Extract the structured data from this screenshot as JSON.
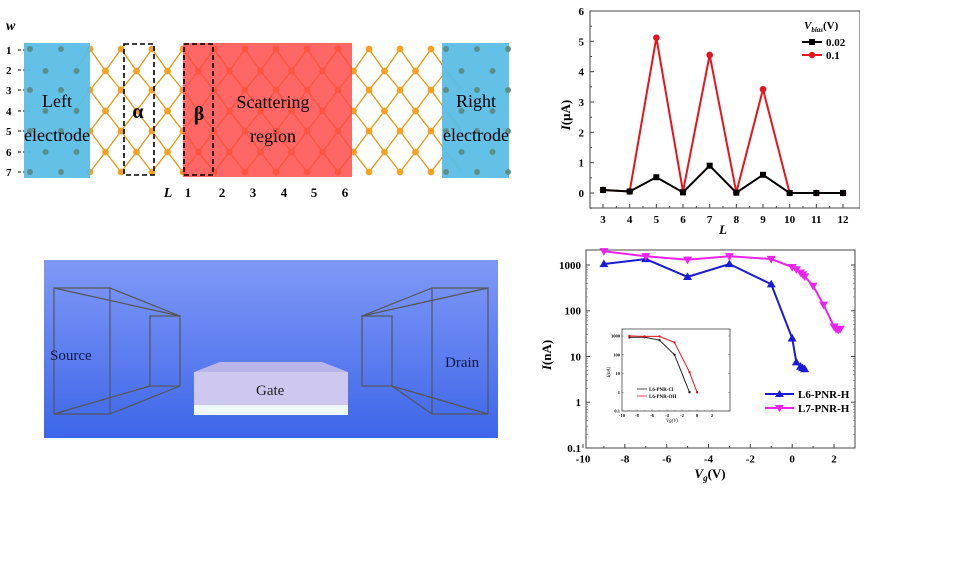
{
  "panel_a": {
    "w_label": "w",
    "row_labels": [
      "1",
      "2",
      "3",
      "4",
      "5",
      "6",
      "7"
    ],
    "left_electrode": [
      "Left",
      "electrode"
    ],
    "right_electrode": [
      "Right",
      "electrode"
    ],
    "alpha": "α",
    "beta": "β",
    "scattering": [
      "Scattering",
      "region"
    ],
    "L_label": "L",
    "col_labels": [
      "1",
      "2",
      "3",
      "4",
      "5",
      "6"
    ],
    "colors": {
      "electrode": "#5bbde6",
      "scattering": "#ff5a5a",
      "atom": "#f5a020",
      "electrode_atom": "#5d8f88"
    }
  },
  "panel_c": {
    "source": "Source",
    "drain": "Drain",
    "gate": "Gate",
    "colors": {
      "bg_top": "#7f99f5",
      "bg_bottom": "#3a63e8"
    }
  },
  "chart_data": [
    {
      "type": "line",
      "title": "",
      "xlabel": "L",
      "ylabel": "I(μA)",
      "x": [
        3,
        4,
        5,
        6,
        7,
        8,
        9,
        10,
        11,
        12
      ],
      "xlim": [
        2.6,
        12.4
      ],
      "ylim": [
        -0.5,
        6
      ],
      "xticks": [
        "3",
        "4",
        "5",
        "6",
        "7",
        "8",
        "9",
        "10",
        "11",
        "12"
      ],
      "yticks": [
        "0",
        "1",
        "2",
        "3",
        "4",
        "5",
        "6"
      ],
      "legend_title": "V_bias(V)",
      "legend_position": "top-right",
      "series": [
        {
          "name": "0.02",
          "color": "#000000",
          "marker": "square",
          "x": [
            3,
            4,
            5,
            6,
            7,
            8,
            9,
            10,
            11,
            12
          ],
          "values": [
            0.1,
            0.05,
            0.52,
            0.02,
            0.9,
            0.01,
            0.6,
            0.0,
            0.0,
            0.0
          ]
        },
        {
          "name": "0.1",
          "color": "#e8141c",
          "marker": "circle",
          "x": [
            3,
            4,
            5,
            6,
            7,
            8,
            9,
            10,
            11,
            12
          ],
          "values": [
            0.1,
            0.05,
            5.12,
            0.05,
            4.55,
            0.02,
            3.42,
            0.0,
            0.0,
            0.0
          ]
        }
      ]
    },
    {
      "type": "line",
      "title": "",
      "xlabel": "Vg(V)",
      "ylabel": "I(nA)",
      "yscale": "log",
      "xlim": [
        -10,
        3
      ],
      "ylim": [
        0.1,
        2500
      ],
      "xticks": [
        "-10",
        "-8",
        "-6",
        "-4",
        "-2",
        "0",
        "2"
      ],
      "yticks": [
        "0.1",
        "1",
        "10",
        "100",
        "1000"
      ],
      "legend_position": "bottom-right",
      "series": [
        {
          "name": "L6-PNR-H",
          "color": "#1a1ad8",
          "marker": "triangle-up",
          "x": [
            -9,
            -7,
            -5,
            -3,
            -1,
            0,
            0.2,
            0.4,
            0.5,
            0.6
          ],
          "values": [
            1050,
            1350,
            550,
            1050,
            380,
            25,
            7.5,
            6,
            5.6,
            5.3
          ]
        },
        {
          "name": "L7-PNR-H",
          "color": "#ee22ee",
          "marker": "triangle-down",
          "x": [
            -9,
            -7,
            -5,
            -3,
            -1,
            0,
            0.2,
            0.4,
            0.5,
            0.6,
            1,
            1.5,
            2,
            2.1,
            2.2,
            2.3
          ],
          "values": [
            2000,
            1550,
            1300,
            1550,
            1350,
            900,
            800,
            680,
            620,
            560,
            350,
            135,
            45,
            40,
            38,
            40
          ]
        }
      ]
    },
    {
      "type": "line",
      "title": "",
      "inset": true,
      "xlabel": "Vg(V)",
      "ylabel": "I(nA)",
      "yscale": "log",
      "xlim": [
        -10,
        3
      ],
      "ylim": [
        0.1,
        2500
      ],
      "xticks": [
        "-10",
        "-8",
        "-6",
        "-4",
        "-2",
        "0",
        "2"
      ],
      "yticks": [
        "0.1",
        "1",
        "10",
        "100",
        "1000"
      ],
      "legend_position": "bottom-left",
      "series": [
        {
          "name": "L6-PNR-Cl",
          "color": "#222222",
          "marker": "dot",
          "x": [
            -9,
            -7,
            -5,
            -3,
            -1
          ],
          "values": [
            850,
            870,
            600,
            100,
            1
          ]
        },
        {
          "name": "L6-PNR-OH",
          "color": "#e8141c",
          "marker": "dot",
          "x": [
            -9,
            -7,
            -5,
            -3,
            -1,
            0
          ],
          "values": [
            1000,
            950,
            950,
            450,
            12,
            1
          ]
        }
      ]
    }
  ]
}
